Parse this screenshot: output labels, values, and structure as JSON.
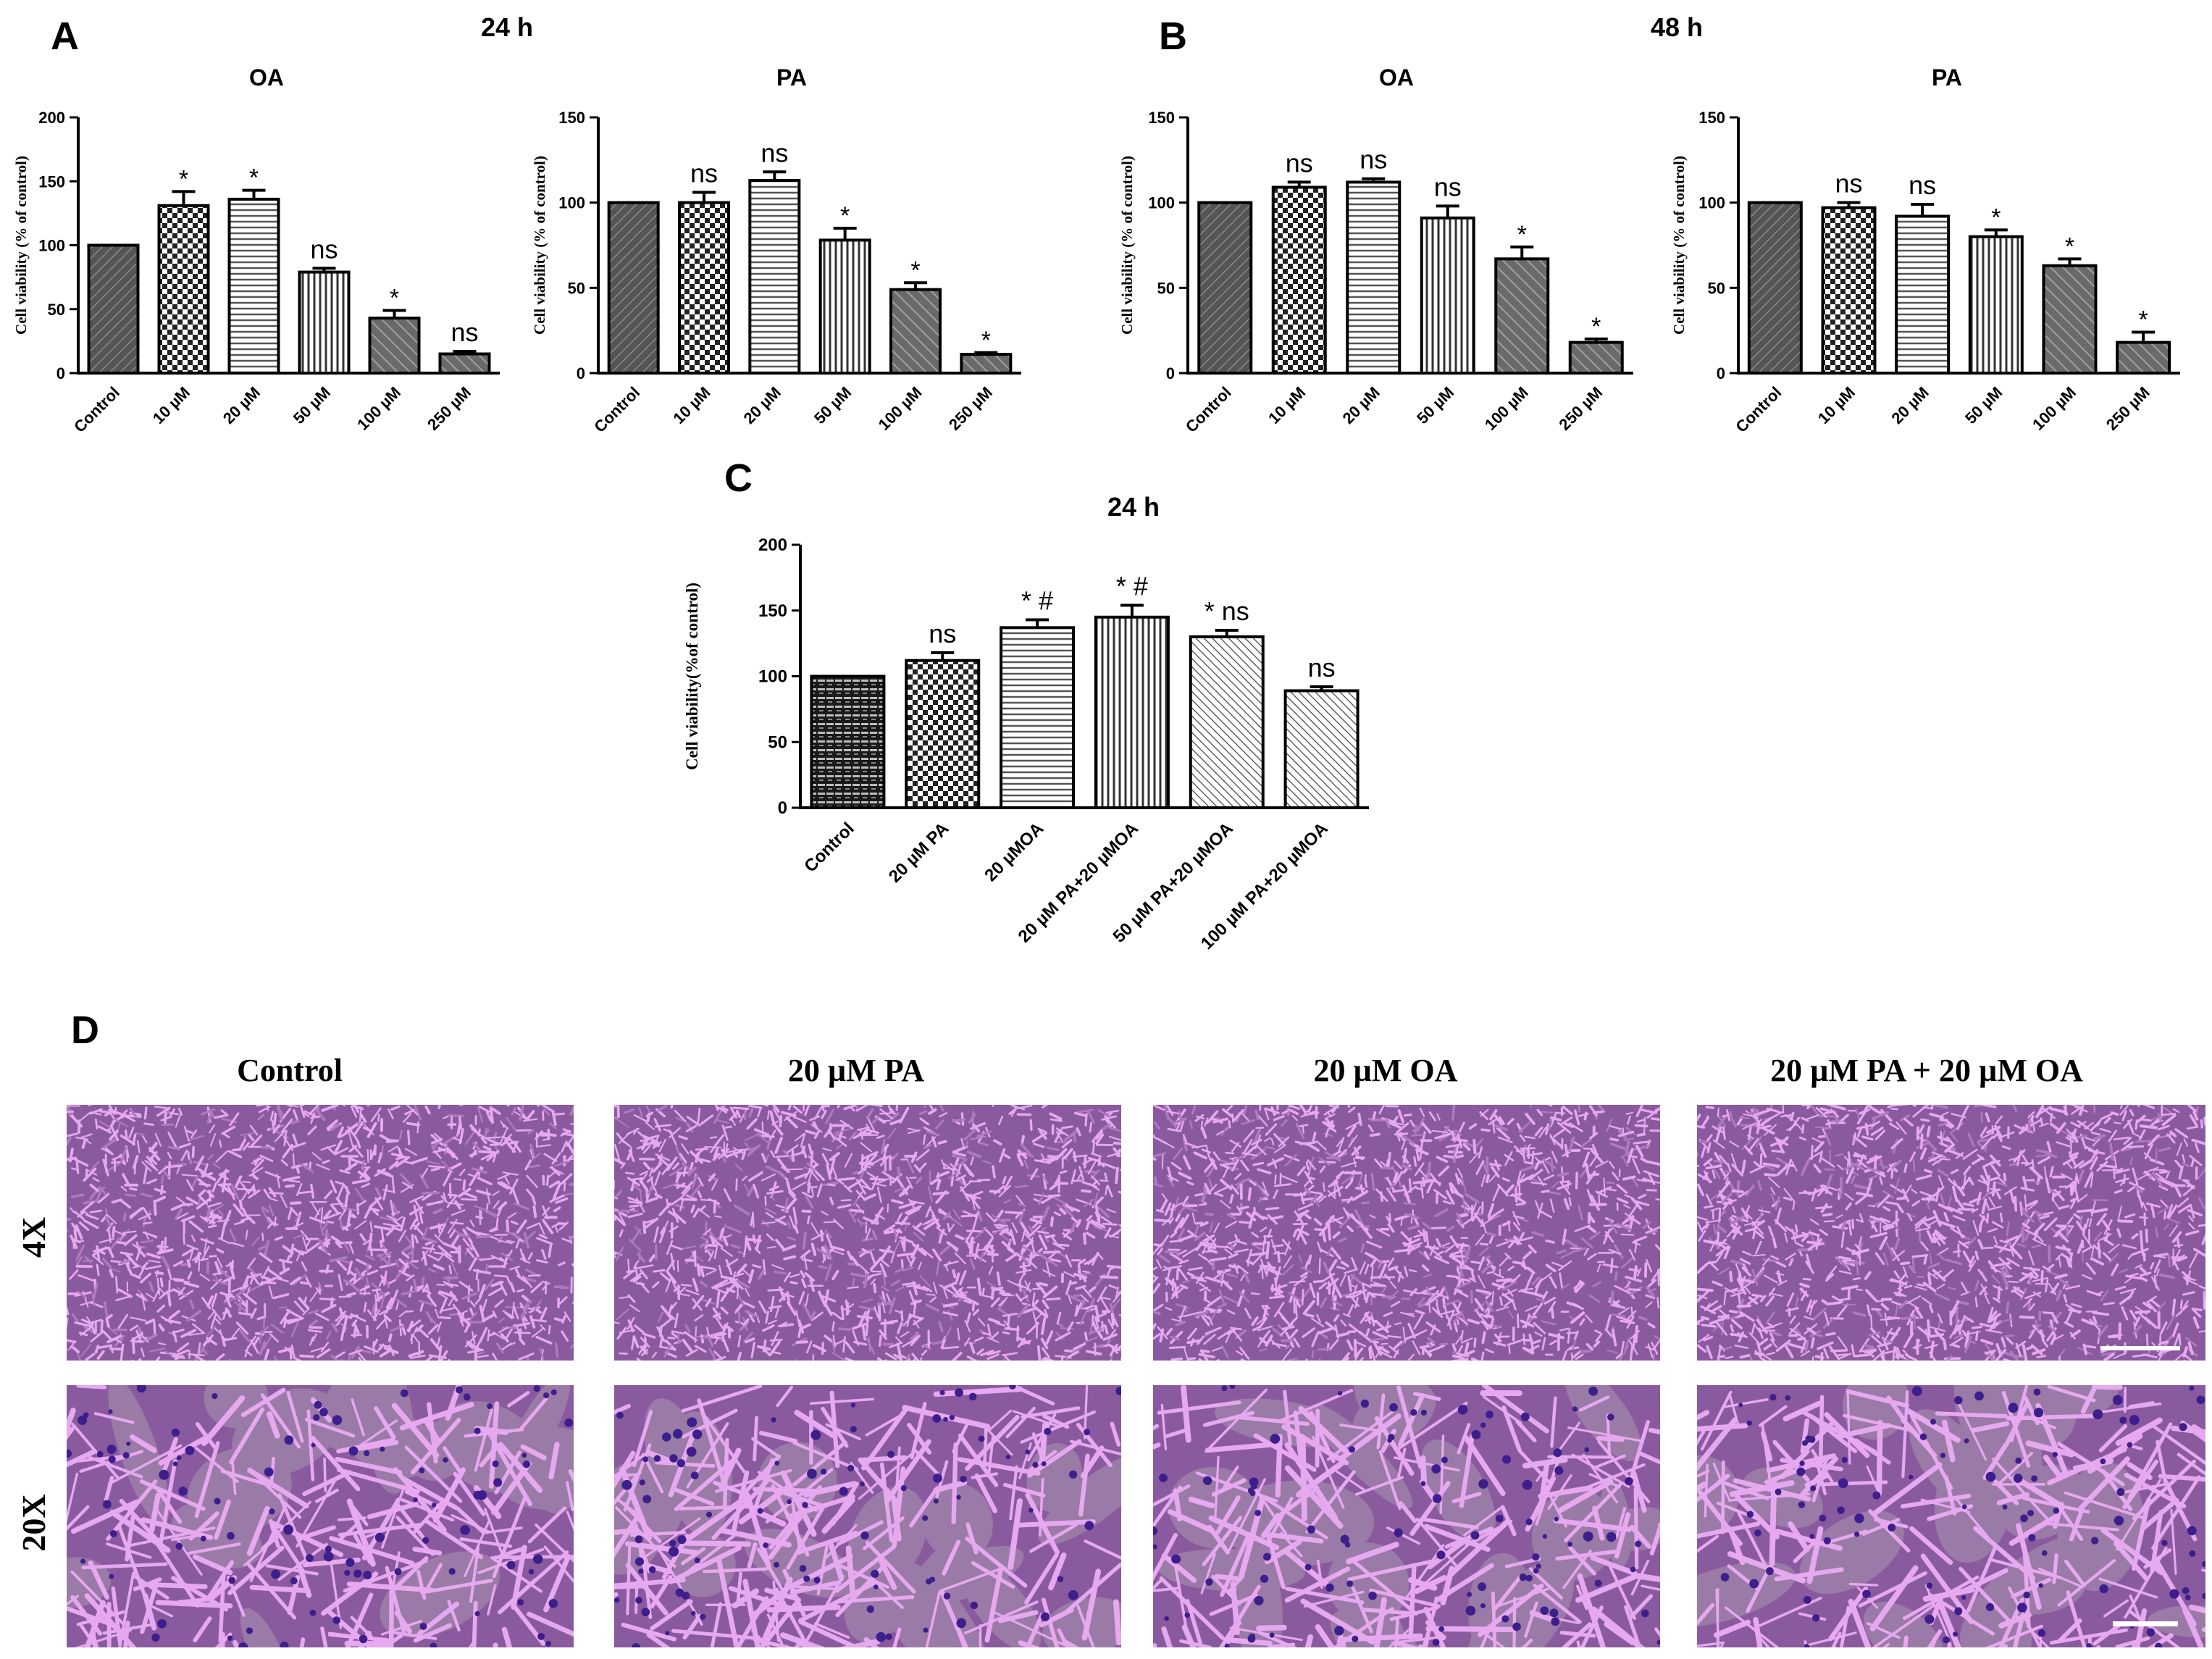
{
  "panels": {
    "A": {
      "letter": "A",
      "time": "24 h"
    },
    "B": {
      "letter": "B",
      "time": "48 h"
    },
    "C": {
      "letter": "C",
      "time": "24 h"
    },
    "D": {
      "letter": "D",
      "column_headers": [
        "Control",
        "20 µM PA",
        "20 µM OA",
        "20 µM PA + 20 µM OA"
      ],
      "row_labels": [
        "4X",
        "20X"
      ]
    }
  },
  "chart_data": [
    {
      "id": "A-OA",
      "type": "bar",
      "title": "OA",
      "ylabel": "Cell viability (% of control)",
      "ylim": [
        0,
        200
      ],
      "yticks": [
        "0",
        "50",
        "100",
        "150",
        "200"
      ],
      "categories": [
        "Control",
        "10 µM",
        "20 µM",
        "50 µM",
        "100 µM",
        "250 µM"
      ],
      "values": [
        100,
        131,
        136,
        79,
        43,
        15
      ],
      "errors": [
        0,
        11,
        7,
        3,
        6,
        2
      ],
      "annotations": [
        "",
        "*",
        "*",
        "ns",
        "*",
        "ns"
      ]
    },
    {
      "id": "A-PA",
      "type": "bar",
      "title": "PA",
      "ylabel": "Cell viability (% of control)",
      "ylim": [
        0,
        150
      ],
      "yticks": [
        "0",
        "50",
        "100",
        "150"
      ],
      "categories": [
        "Control",
        "10 µM",
        "20 µM",
        "50 µM",
        "100 µM",
        "250 µM"
      ],
      "values": [
        100,
        100,
        113,
        78,
        49,
        11
      ],
      "errors": [
        0,
        6,
        5,
        7,
        4,
        1
      ],
      "annotations": [
        "",
        "ns",
        "ns",
        "*",
        "*",
        "*"
      ]
    },
    {
      "id": "B-OA",
      "type": "bar",
      "title": "OA",
      "ylabel": "Cell viability (% of control)",
      "ylim": [
        0,
        150
      ],
      "yticks": [
        "0",
        "50",
        "100",
        "150"
      ],
      "categories": [
        "Control",
        "10 µM",
        "20 µM",
        "50 µM",
        "100 µM",
        "250 µM"
      ],
      "values": [
        100,
        109,
        112,
        91,
        67,
        18
      ],
      "errors": [
        0,
        3,
        2,
        7,
        7,
        2
      ],
      "annotations": [
        "",
        "ns",
        "ns",
        "ns",
        "*",
        "*"
      ]
    },
    {
      "id": "B-PA",
      "type": "bar",
      "title": "PA",
      "ylabel": "Cell viability (% of control)",
      "ylim": [
        0,
        150
      ],
      "yticks": [
        "0",
        "50",
        "100",
        "150"
      ],
      "categories": [
        "Control",
        "10 µM",
        "20 µM",
        "50 µM",
        "100 µM",
        "250 µM"
      ],
      "values": [
        100,
        97,
        92,
        80,
        63,
        18
      ],
      "errors": [
        0,
        3,
        7,
        4,
        4,
        6
      ],
      "annotations": [
        "",
        "ns",
        "ns",
        "*",
        "*",
        "*"
      ]
    },
    {
      "id": "C",
      "type": "bar",
      "title": "",
      "ylabel": "Cell viability(%of control)",
      "ylim": [
        0,
        200
      ],
      "yticks": [
        "0",
        "50",
        "100",
        "150",
        "200"
      ],
      "categories": [
        "Control",
        "20 µM PA",
        "20 µMOA",
        "20 µM PA+20 µMOA",
        "50 µM PA+20 µMOA",
        "100 µM PA+20 µMOA"
      ],
      "values": [
        100,
        112,
        137,
        145,
        130,
        89
      ],
      "errors": [
        0,
        6,
        6,
        9,
        5,
        3
      ],
      "annotations": [
        "",
        "ns",
        "* #",
        "* #",
        "* ns",
        "ns"
      ]
    }
  ],
  "colors": {
    "bar_stroke": "#000000",
    "bar_dark": "#4a4a4a",
    "micrograph_base": "#8a5a9e",
    "micrograph_cell": "#e6a8ef",
    "micrograph_nucleus": "#3c1e8c",
    "scale_bar": "#ffffff"
  }
}
